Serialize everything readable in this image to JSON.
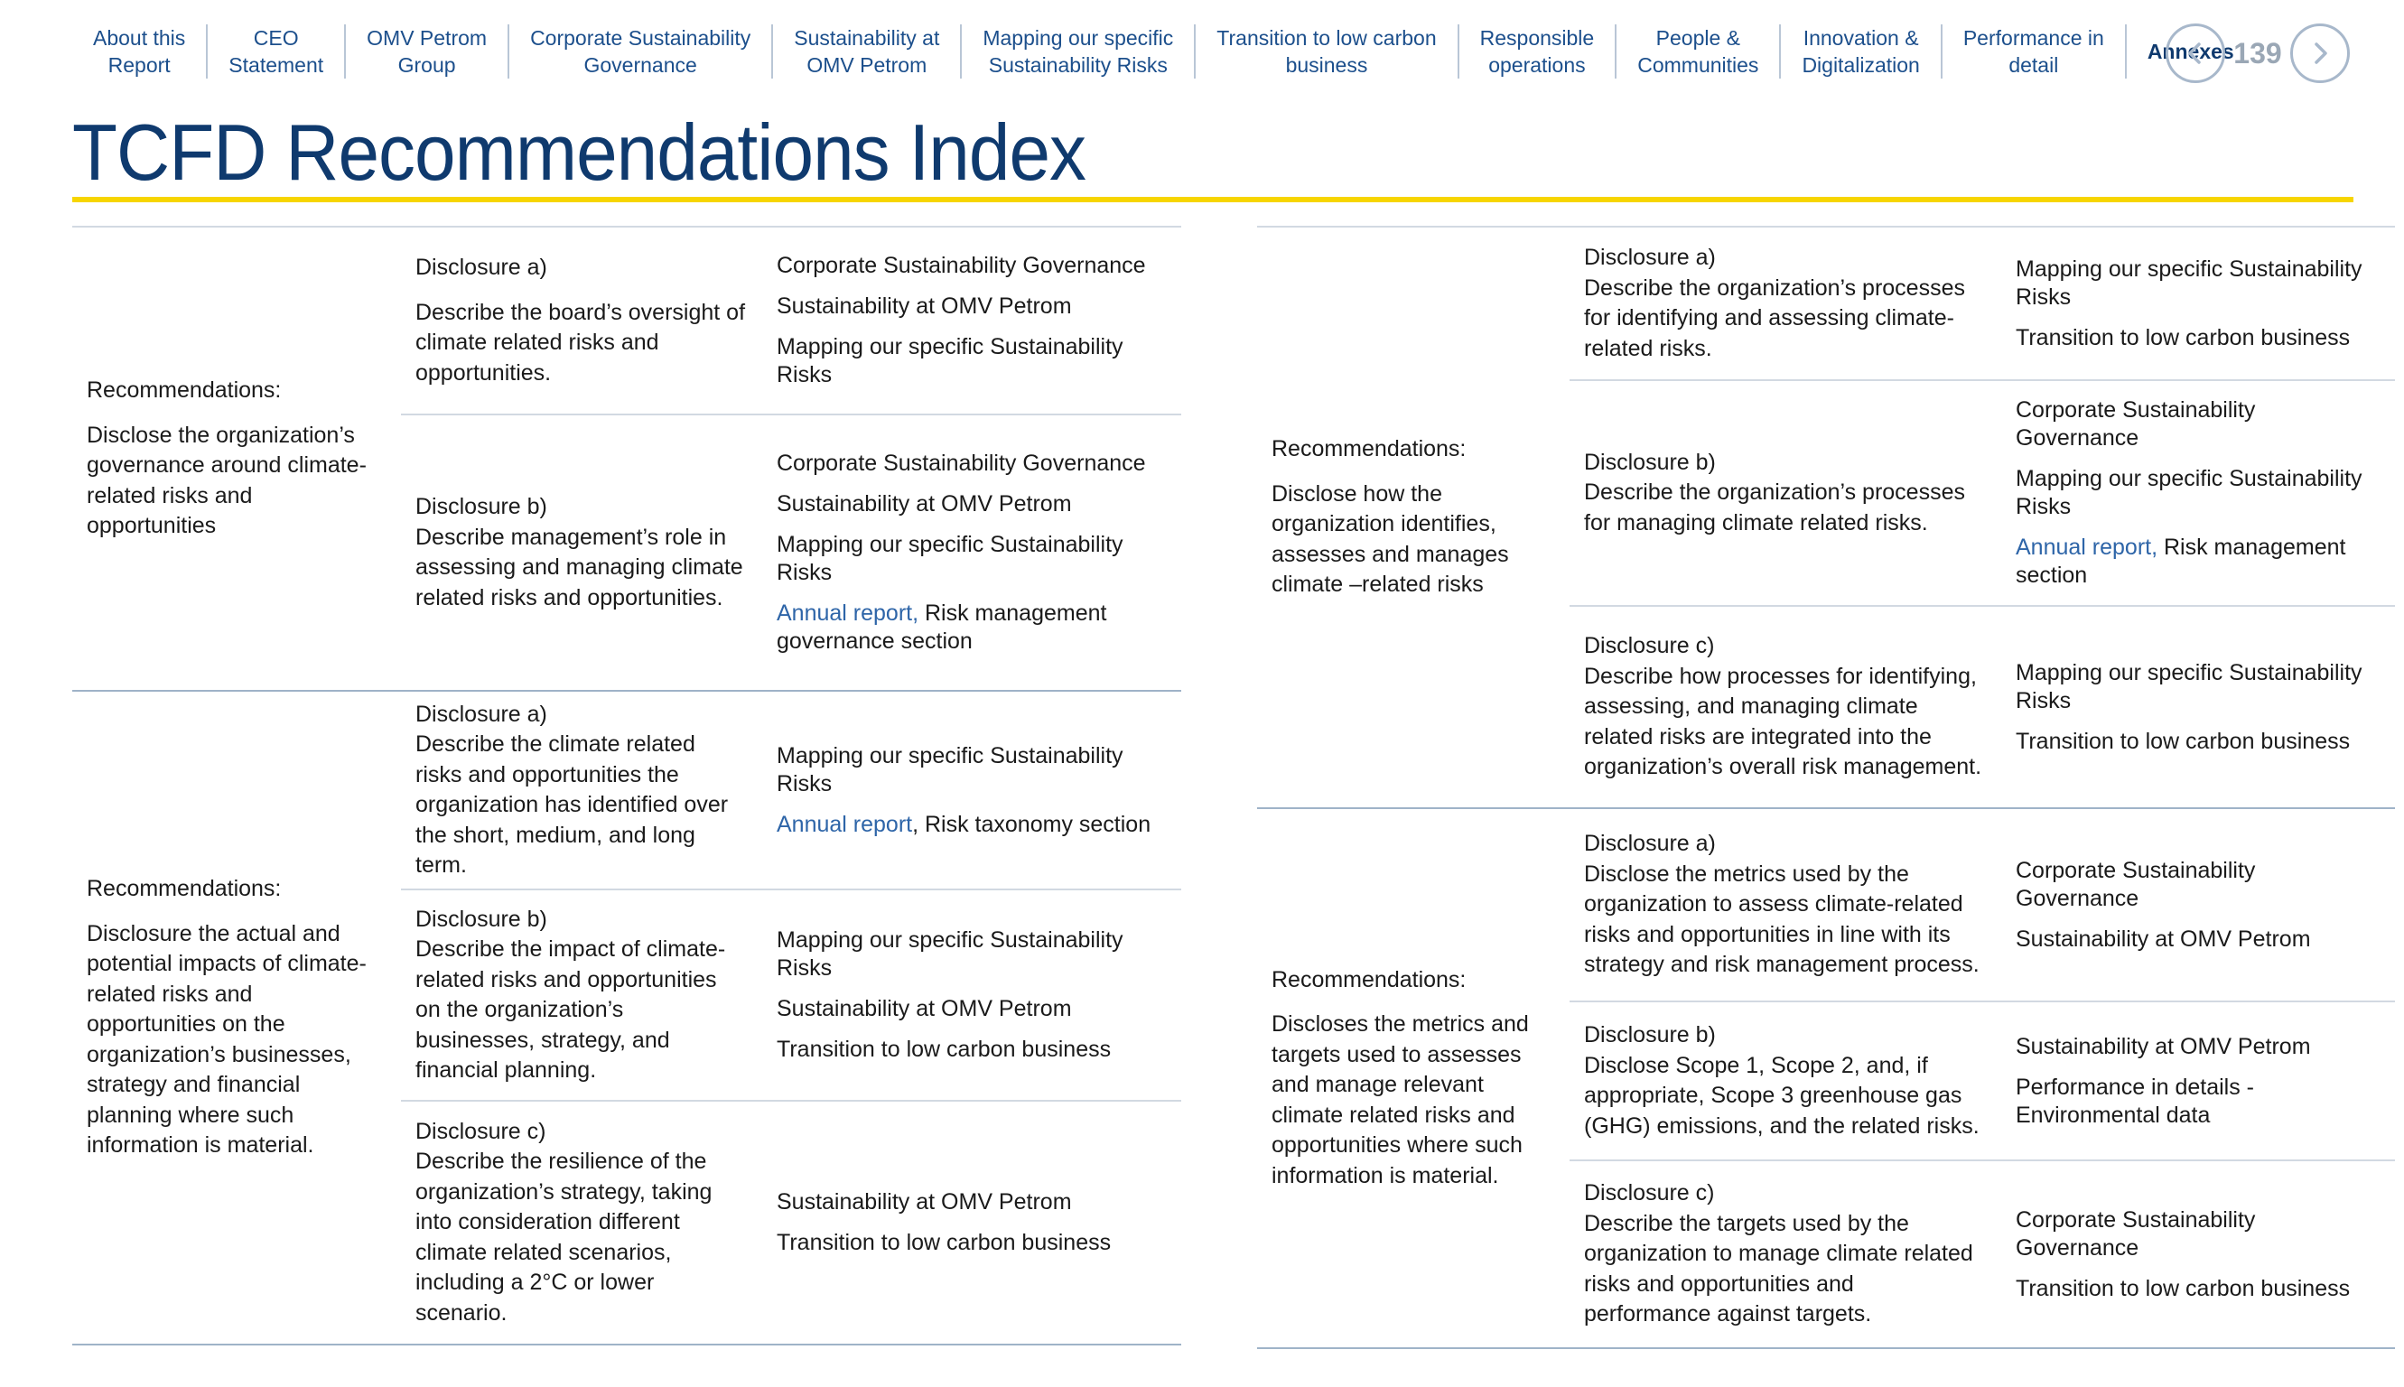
{
  "nav": {
    "items": [
      {
        "label": "About this\nReport",
        "name": "nav-about-report"
      },
      {
        "label": "CEO\nStatement",
        "name": "nav-ceo-statement"
      },
      {
        "label": "OMV Petrom\nGroup",
        "name": "nav-omv-petrom-group"
      },
      {
        "label": "Corporate Sustainability\nGovernance",
        "name": "nav-corporate-governance"
      },
      {
        "label": "Sustainability at\nOMV Petrom",
        "name": "nav-sustainability"
      },
      {
        "label": "Mapping our specific\nSustainability Risks",
        "name": "nav-mapping-risks"
      },
      {
        "label": "Transition to low carbon\nbusiness",
        "name": "nav-transition"
      },
      {
        "label": "Responsible\noperations",
        "name": "nav-responsible-operations"
      },
      {
        "label": "People &\nCommunities",
        "name": "nav-people-communities"
      },
      {
        "label": "Innovation &\nDigitalization",
        "name": "nav-innovation"
      },
      {
        "label": "Performance in\ndetail",
        "name": "nav-performance"
      },
      {
        "label": "Annexes",
        "name": "nav-annexes",
        "active": true
      }
    ],
    "page_number": "139",
    "prev_icon": "chevron-left-icon",
    "next_icon": "chevron-right-icon"
  },
  "colors": {
    "title": "#0f3a6e",
    "accent_rule": "#f7d500",
    "link": "#2e65a8",
    "nav": "#1c4f8c"
  },
  "title": "TCFD Recommendations Index",
  "left_table": [
    {
      "rec_head": "Recommendations:",
      "rec_text": "Disclose the organization’s governance around climate- related risks and opportunities",
      "height": 0,
      "disclosures": [
        {
          "head": "Disclosure a)",
          "text": "Describe the board’s oversight of climate related risks and opportunities.",
          "gap": true,
          "refs": [
            {
              "text": "Corporate Sustainability Governance"
            },
            {
              "text": "Sustainability at OMV Petrom"
            },
            {
              "text": "Mapping our specific Sustainability Risks"
            }
          ]
        },
        {
          "head": "Disclosure b)",
          "text": "Describe management’s role in assessing and managing climate related risks and opportunities.",
          "refs": [
            {
              "text": "Corporate Sustainability Governance"
            },
            {
              "text": "Sustainability at OMV Petrom"
            },
            {
              "text": "Mapping our specific Sustainability Risks"
            },
            {
              "link": "Annual report,",
              "text": " Risk management governance section"
            }
          ]
        }
      ]
    },
    {
      "rec_head": "Recommendations:",
      "rec_text": "Disclosure the actual and potential impacts of climate-related risks and opportunities on the organization’s businesses, strategy and financial planning where such information is material.",
      "disclosures": [
        {
          "head": "Disclosure a)",
          "text": "Describe the climate related risks and opportunities the organization has identified over the short, medium, and long term.",
          "refs": [
            {
              "text": "Mapping our specific Sustainability Risks"
            },
            {
              "link": "Annual report",
              "text": ", Risk taxonomy section"
            }
          ]
        },
        {
          "head": "Disclosure b)",
          "text": "Describe the impact of climate-related risks and opportunities on the organization’s businesses, strategy, and financial planning.",
          "refs": [
            {
              "text": "Mapping our specific Sustainability Risks"
            },
            {
              "text": "Sustainability at OMV Petrom"
            },
            {
              "text": "Transition to low carbon business"
            }
          ]
        },
        {
          "head": "Disclosure c)",
          "text": "Describe the resilience of the organization’s strategy, taking into consideration different climate related scenarios, including a 2°C or lower scenario.",
          "refs": [
            {
              "text": "Sustainability at OMV Petrom"
            },
            {
              "text": "Transition to low carbon business"
            }
          ]
        }
      ]
    }
  ],
  "right_table": [
    {
      "rec_head": "Recommendations:",
      "rec_text": "Disclose how the organization identifies, assesses and manages climate –related risks",
      "disclosures": [
        {
          "head": "Disclosure a)",
          "text": "Describe the organization’s processes for identifying and assessing climate-related risks.",
          "refs": [
            {
              "text": "Mapping our specific Sustainability Risks"
            },
            {
              "text": "Transition to low carbon business"
            }
          ]
        },
        {
          "head": "Disclosure b)",
          "text": "Describe the organization’s processes for managing climate related risks.",
          "refs": [
            {
              "text": "Corporate Sustainability Governance"
            },
            {
              "text": "Mapping our specific Sustainability Risks"
            },
            {
              "link": "Annual report,",
              "text": " Risk management section"
            }
          ]
        },
        {
          "head": "Disclosure c)",
          "text": "Describe how processes for identifying, assessing, and managing climate related risks are integrated into the organization’s overall risk management.",
          "refs": [
            {
              "text": "Mapping our specific Sustainability Risks"
            },
            {
              "text": "Transition to low carbon business"
            }
          ]
        }
      ]
    },
    {
      "rec_head": "Recommendations:",
      "rec_text": "Discloses the metrics and targets used to assesses and manage relevant climate related risks and opportunities where such information is material.",
      "disclosures": [
        {
          "head": "Disclosure a)",
          "text": "Disclose the metrics used by the organization to assess climate-related risks and opportunities in line with its strategy and risk management process.",
          "refs": [
            {
              "text": "Corporate Sustainability Governance"
            },
            {
              "text": "Sustainability at OMV Petrom"
            }
          ]
        },
        {
          "head": "Disclosure b)",
          "text": "Disclose Scope 1, Scope 2, and, if appropriate, Scope 3 greenhouse gas (GHG) emissions, and the related risks.",
          "refs": [
            {
              "text": "Sustainability at OMV Petrom"
            },
            {
              "text": "Performance in details - Environmental data"
            }
          ]
        },
        {
          "head": "Disclosure c)",
          "text": "Describe the targets used by the organization to manage climate related risks and opportunities and performance against targets.",
          "refs": [
            {
              "text": "Corporate Sustainability Governance"
            },
            {
              "text": "Transition to low carbon business"
            }
          ]
        }
      ]
    }
  ]
}
